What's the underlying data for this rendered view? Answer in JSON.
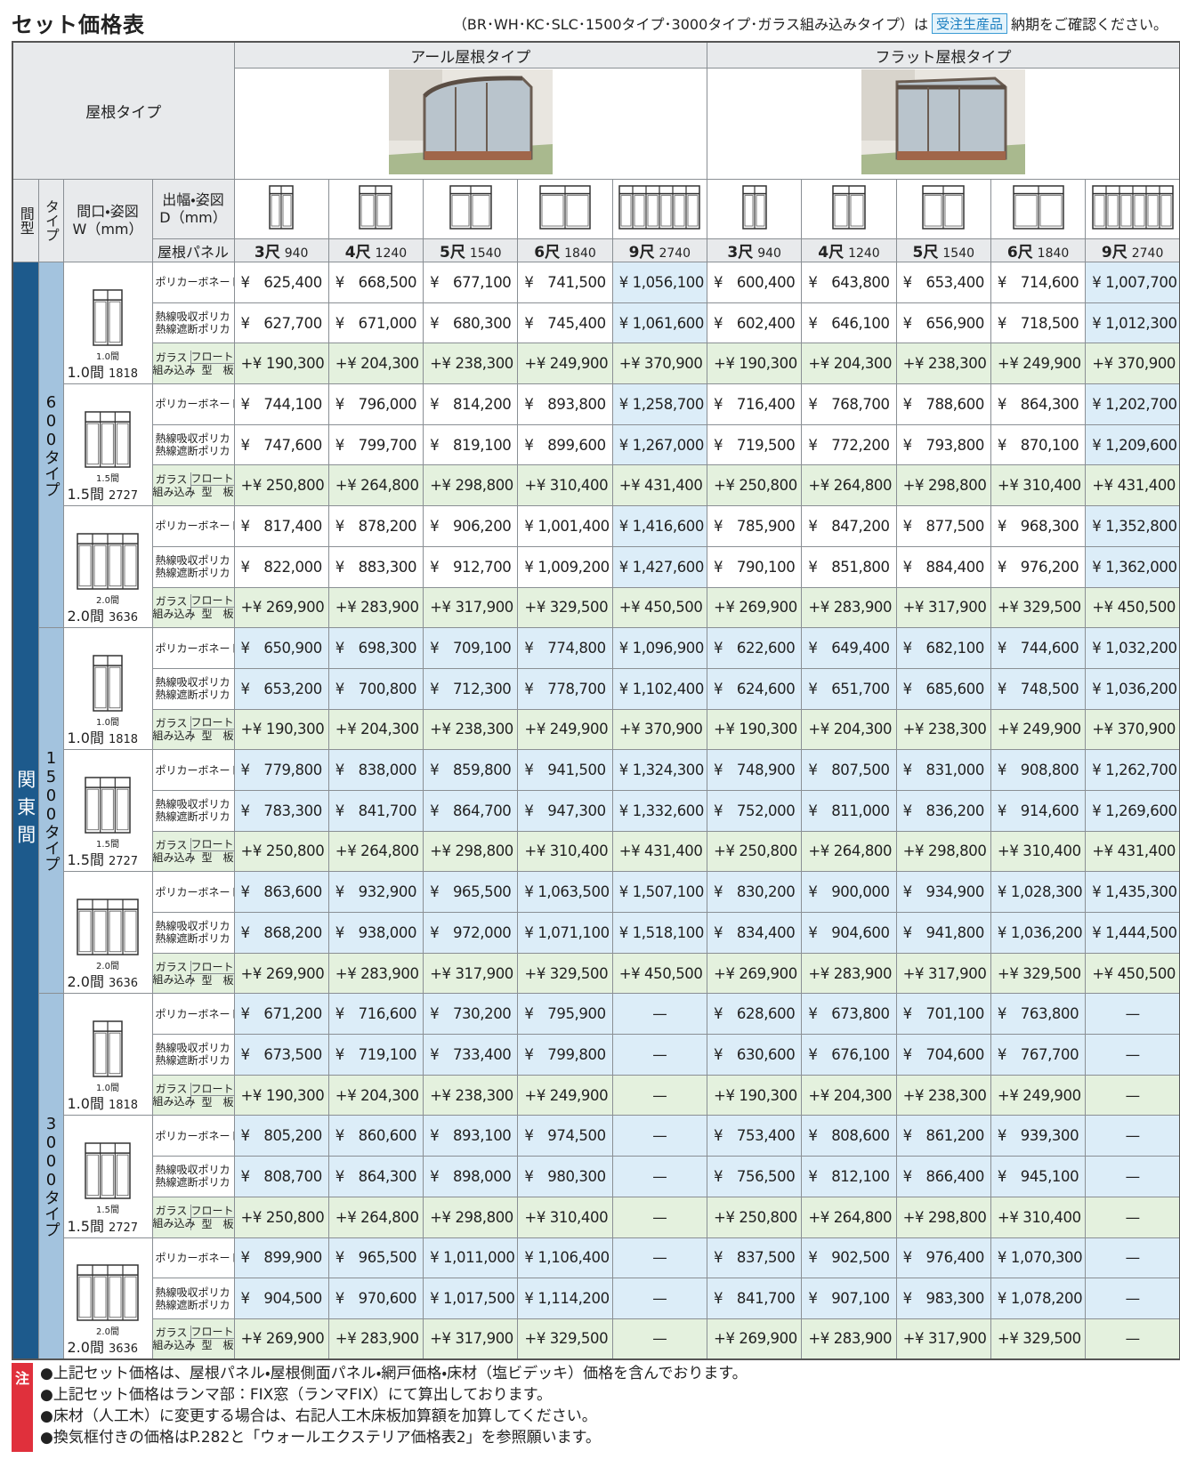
{
  "header": {
    "title": "セット価格表",
    "note_before": "（BR･WH･KC･SLC･1500タイプ･3000タイプ･ガラス組み込みタイプ）は",
    "badge": "受注生産品",
    "note_after": "納期をご確認ください。"
  },
  "table": {
    "roof_type_label": "屋根タイプ",
    "roof_types": [
      "アール屋根タイプ",
      "フラット屋根タイプ"
    ],
    "col_headers": {
      "ma": "間型",
      "type": "タイプ",
      "width": [
        "間口・姿図",
        "W（mm）"
      ],
      "depth": [
        "出幅・姿図",
        "D（mm）"
      ],
      "panel": "屋根パネル"
    },
    "sizes": [
      {
        "shaku": "3尺",
        "mm": "940"
      },
      {
        "shaku": "4尺",
        "mm": "1240"
      },
      {
        "shaku": "5尺",
        "mm": "1540"
      },
      {
        "shaku": "6尺",
        "mm": "1840"
      },
      {
        "shaku": "9尺",
        "mm": "2740"
      }
    ],
    "row_labels": {
      "polycarbonate": "ポリカーボネート",
      "heat": [
        "熱線吸収ポリカ",
        "熱線遮断ポリカ"
      ],
      "glass": [
        "ガラス",
        "組み込み"
      ],
      "glass_kind": [
        "フロート板",
        "型　板"
      ]
    },
    "region": "関東間",
    "groups": [
      {
        "type": "600タイプ",
        "widths": [
          {
            "ken": "1.0間",
            "mm": "1818",
            "rows": [
              [
                "¥ 625,400",
                "¥ 668,500",
                "¥ 677,100",
                "¥ 741,500",
                "¥ 1,056,100",
                "¥ 600,400",
                "¥ 643,800",
                "¥ 653,400",
                "¥ 714,600",
                "¥ 1,007,700"
              ],
              [
                "¥ 627,700",
                "¥ 671,000",
                "¥ 680,300",
                "¥ 745,400",
                "¥ 1,061,600",
                "¥ 602,400",
                "¥ 646,100",
                "¥ 656,900",
                "¥ 718,500",
                "¥ 1,012,300"
              ],
              [
                "+¥ 190,300",
                "+¥ 204,300",
                "+¥ 238,300",
                "+¥ 249,900",
                "+¥ 370,900",
                "+¥ 190,300",
                "+¥ 204,300",
                "+¥ 238,300",
                "+¥ 249,900",
                "+¥ 370,900"
              ]
            ]
          },
          {
            "ken": "1.5間",
            "mm": "2727",
            "rows": [
              [
                "¥ 744,100",
                "¥ 796,000",
                "¥ 814,200",
                "¥ 893,800",
                "¥ 1,258,700",
                "¥ 716,400",
                "¥ 768,700",
                "¥ 788,600",
                "¥ 864,300",
                "¥ 1,202,700"
              ],
              [
                "¥ 747,600",
                "¥ 799,700",
                "¥ 819,100",
                "¥ 899,600",
                "¥ 1,267,000",
                "¥ 719,500",
                "¥ 772,200",
                "¥ 793,800",
                "¥ 870,100",
                "¥ 1,209,600"
              ],
              [
                "+¥ 250,800",
                "+¥ 264,800",
                "+¥ 298,800",
                "+¥ 310,400",
                "+¥ 431,400",
                "+¥ 250,800",
                "+¥ 264,800",
                "+¥ 298,800",
                "+¥ 310,400",
                "+¥ 431,400"
              ]
            ]
          },
          {
            "ken": "2.0間",
            "mm": "3636",
            "rows": [
              [
                "¥ 817,400",
                "¥ 878,200",
                "¥ 906,200",
                "¥ 1,001,400",
                "¥ 1,416,600",
                "¥ 785,900",
                "¥ 847,200",
                "¥ 877,500",
                "¥ 968,300",
                "¥ 1,352,800"
              ],
              [
                "¥ 822,000",
                "¥ 883,300",
                "¥ 912,700",
                "¥ 1,009,200",
                "¥ 1,427,600",
                "¥ 790,100",
                "¥ 851,800",
                "¥ 884,400",
                "¥ 976,200",
                "¥ 1,362,000"
              ],
              [
                "+¥ 269,900",
                "+¥ 283,900",
                "+¥ 317,900",
                "+¥ 329,500",
                "+¥ 450,500",
                "+¥ 269,900",
                "+¥ 283,900",
                "+¥ 317,900",
                "+¥ 329,500",
                "+¥ 450,500"
              ]
            ]
          }
        ]
      },
      {
        "type": "1500タイプ",
        "widths": [
          {
            "ken": "1.0間",
            "mm": "1818",
            "rows": [
              [
                "¥ 650,900",
                "¥ 698,300",
                "¥ 709,100",
                "¥ 774,800",
                "¥ 1,096,900",
                "¥ 622,600",
                "¥ 649,400",
                "¥ 682,100",
                "¥ 744,600",
                "¥ 1,032,200"
              ],
              [
                "¥ 653,200",
                "¥ 700,800",
                "¥ 712,300",
                "¥ 778,700",
                "¥ 1,102,400",
                "¥ 624,600",
                "¥ 651,700",
                "¥ 685,600",
                "¥ 748,500",
                "¥ 1,036,200"
              ],
              [
                "+¥ 190,300",
                "+¥ 204,300",
                "+¥ 238,300",
                "+¥ 249,900",
                "+¥ 370,900",
                "+¥ 190,300",
                "+¥ 204,300",
                "+¥ 238,300",
                "+¥ 249,900",
                "+¥ 370,900"
              ]
            ]
          },
          {
            "ken": "1.5間",
            "mm": "2727",
            "rows": [
              [
                "¥ 779,800",
                "¥ 838,000",
                "¥ 859,800",
                "¥ 941,500",
                "¥ 1,324,300",
                "¥ 748,900",
                "¥ 807,500",
                "¥ 831,000",
                "¥ 908,800",
                "¥ 1,262,700"
              ],
              [
                "¥ 783,300",
                "¥ 841,700",
                "¥ 864,700",
                "¥ 947,300",
                "¥ 1,332,600",
                "¥ 752,000",
                "¥ 811,000",
                "¥ 836,200",
                "¥ 914,600",
                "¥ 1,269,600"
              ],
              [
                "+¥ 250,800",
                "+¥ 264,800",
                "+¥ 298,800",
                "+¥ 310,400",
                "+¥ 431,400",
                "+¥ 250,800",
                "+¥ 264,800",
                "+¥ 298,800",
                "+¥ 310,400",
                "+¥ 431,400"
              ]
            ]
          },
          {
            "ken": "2.0間",
            "mm": "3636",
            "rows": [
              [
                "¥ 863,600",
                "¥ 932,900",
                "¥ 965,500",
                "¥ 1,063,500",
                "¥ 1,507,100",
                "¥ 830,200",
                "¥ 900,000",
                "¥ 934,900",
                "¥ 1,028,300",
                "¥ 1,435,300"
              ],
              [
                "¥ 868,200",
                "¥ 938,000",
                "¥ 972,000",
                "¥ 1,071,100",
                "¥ 1,518,100",
                "¥ 834,400",
                "¥ 904,600",
                "¥ 941,800",
                "¥ 1,036,200",
                "¥ 1,444,500"
              ],
              [
                "+¥ 269,900",
                "+¥ 283,900",
                "+¥ 317,900",
                "+¥ 329,500",
                "+¥ 450,500",
                "+¥ 269,900",
                "+¥ 283,900",
                "+¥ 317,900",
                "+¥ 329,500",
                "+¥ 450,500"
              ]
            ]
          }
        ]
      },
      {
        "type": "3000タイプ",
        "widths": [
          {
            "ken": "1.0間",
            "mm": "1818",
            "rows": [
              [
                "¥ 671,200",
                "¥ 716,600",
                "¥ 730,200",
                "¥ 795,900",
                "—",
                "¥ 628,600",
                "¥ 673,800",
                "¥ 701,100",
                "¥ 763,800",
                "—"
              ],
              [
                "¥ 673,500",
                "¥ 719,100",
                "¥ 733,400",
                "¥ 799,800",
                "—",
                "¥ 630,600",
                "¥ 676,100",
                "¥ 704,600",
                "¥ 767,700",
                "—"
              ],
              [
                "+¥ 190,300",
                "+¥ 204,300",
                "+¥ 238,300",
                "+¥ 249,900",
                "—",
                "+¥ 190,300",
                "+¥ 204,300",
                "+¥ 238,300",
                "+¥ 249,900",
                "—"
              ]
            ]
          },
          {
            "ken": "1.5間",
            "mm": "2727",
            "rows": [
              [
                "¥ 805,200",
                "¥ 860,600",
                "¥ 893,100",
                "¥ 974,500",
                "—",
                "¥ 753,400",
                "¥ 808,600",
                "¥ 861,200",
                "¥ 939,300",
                "—"
              ],
              [
                "¥ 808,700",
                "¥ 864,300",
                "¥ 898,000",
                "¥ 980,300",
                "—",
                "¥ 756,500",
                "¥ 812,100",
                "¥ 866,400",
                "¥ 945,100",
                "—"
              ],
              [
                "+¥ 250,800",
                "+¥ 264,800",
                "+¥ 298,800",
                "+¥ 310,400",
                "—",
                "+¥ 250,800",
                "+¥ 264,800",
                "+¥ 298,800",
                "+¥ 310,400",
                "—"
              ]
            ]
          },
          {
            "ken": "2.0間",
            "mm": "3636",
            "rows": [
              [
                "¥ 899,900",
                "¥ 965,500",
                "¥ 1,011,000",
                "¥ 1,106,400",
                "—",
                "¥ 837,500",
                "¥ 902,500",
                "¥ 976,400",
                "¥ 1,070,300",
                "—"
              ],
              [
                "¥ 904,500",
                "¥ 970,600",
                "¥ 1,017,500",
                "¥ 1,114,200",
                "—",
                "¥ 841,700",
                "¥ 907,100",
                "¥ 983,300",
                "¥ 1,078,200",
                "—"
              ],
              [
                "+¥ 269,900",
                "+¥ 283,900",
                "+¥ 317,900",
                "+¥ 329,500",
                "—",
                "+¥ 269,900",
                "+¥ 283,900",
                "+¥ 317,900",
                "+¥ 329,500",
                "—"
              ]
            ]
          }
        ]
      }
    ]
  },
  "notes": {
    "mark": "注",
    "lines": [
      "●上記セット価格は、屋根パネル・屋根側面パネル・網戸価格・床材（塩ビデッキ）価格を含んでおります。",
      "●上記セット価格はランマ部：FIX窓（ランマFIX）にて算出しております。",
      "●床材（人工木）に変更する場合は、右記人工木床板加算額を加算してください。",
      "●換気框付きの価格はP.282と「ウォールエクステリア価格表2」を参照願います。"
    ]
  }
}
